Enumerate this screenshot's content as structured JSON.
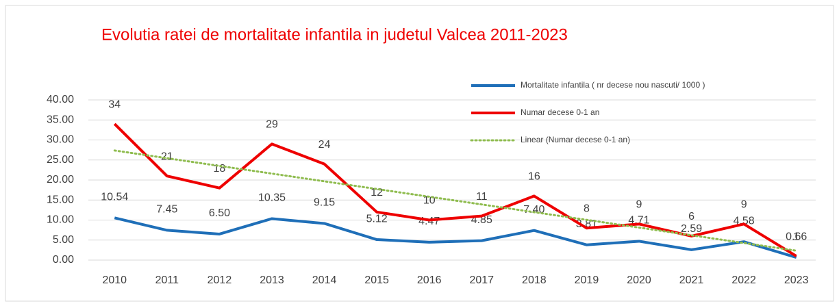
{
  "chart_data": {
    "type": "line",
    "title": "Evolutia ratei de mortalitate infantila in judetul Valcea 2011-2023",
    "categories": [
      "2010",
      "2011",
      "2012",
      "2013",
      "2014",
      "2015",
      "2016",
      "2017",
      "2018",
      "2019",
      "2020",
      "2021",
      "2022",
      "2023"
    ],
    "series": [
      {
        "name": "Mortalitate infantila ( nr decese nou nascuti/ 1000 )",
        "color": "#1f6fb8",
        "style": "solid",
        "values": [
          10.54,
          7.45,
          6.5,
          10.35,
          9.15,
          5.12,
          4.47,
          4.85,
          7.4,
          3.81,
          4.71,
          2.59,
          4.58,
          0.66
        ],
        "value_labels": [
          "10.54",
          "7.45",
          "6.50",
          "10.35",
          "9.15",
          "5.12",
          "4.47",
          "4.85",
          "7.40",
          "3.81",
          "4.71",
          "2.59",
          "4.58",
          "0.66"
        ]
      },
      {
        "name": "Numar decese 0-1 an",
        "color": "#ee0000",
        "style": "solid",
        "values": [
          34,
          21,
          18,
          29,
          24,
          12,
          10,
          11,
          16,
          8,
          9,
          6,
          9,
          1
        ],
        "show_labels": true
      },
      {
        "name": "Linear (Numar decese 0-1 an)",
        "color": "#8fbc4f",
        "style": "dotted",
        "values": [
          27.37,
          25.45,
          23.52,
          21.6,
          19.67,
          17.75,
          15.82,
          13.9,
          11.97,
          10.05,
          8.12,
          6.2,
          4.27,
          2.35
        ]
      }
    ],
    "ylim": [
      0,
      40
    ],
    "yticks": [
      {
        "value": 0,
        "label": "0.00"
      },
      {
        "value": 5,
        "label": "5.00"
      },
      {
        "value": 10,
        "label": "10.00"
      },
      {
        "value": 15,
        "label": "15.00"
      },
      {
        "value": 20,
        "label": "20.00"
      },
      {
        "value": 25,
        "label": "25.00"
      },
      {
        "value": 30,
        "label": "30.00"
      },
      {
        "value": 35,
        "label": "35.00"
      },
      {
        "value": 40,
        "label": "40.00"
      }
    ],
    "grid": true,
    "legend": "top-right"
  }
}
